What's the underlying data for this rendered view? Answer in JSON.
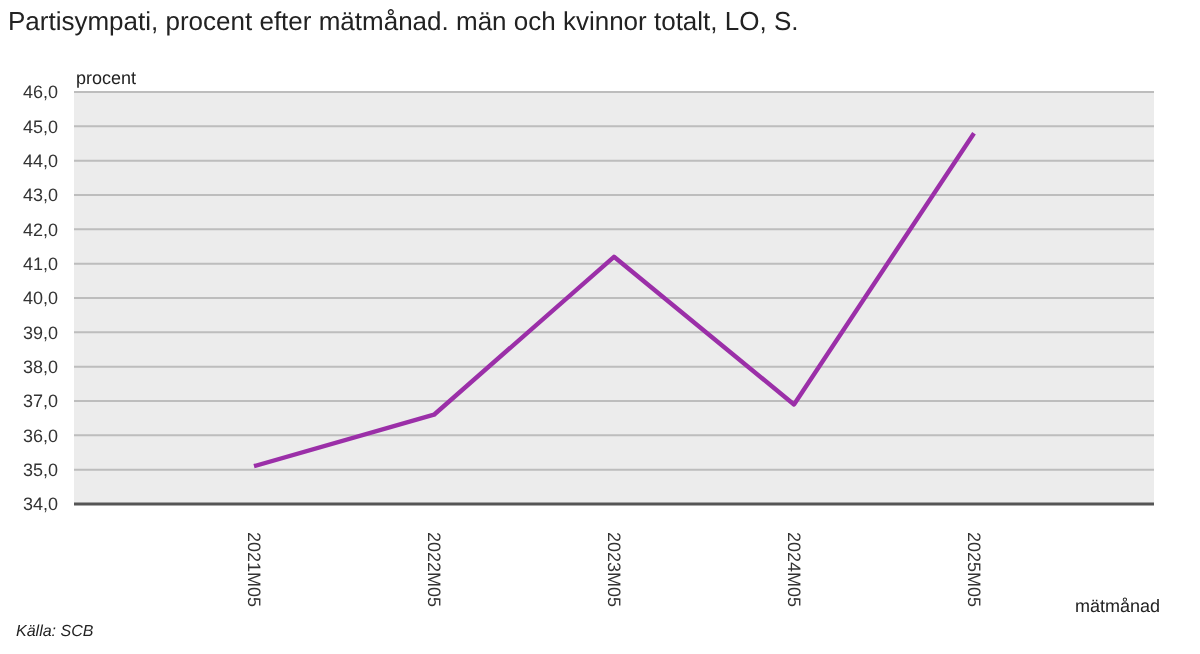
{
  "chart_data": {
    "type": "line",
    "title": "Partisympati, procent efter mätmånad. män och kvinnor totalt, LO, S.",
    "ylabel": "procent",
    "xlabel": "mätmånad",
    "annotations": [
      "Källa: SCB"
    ],
    "categories": [
      "2021M05",
      "2022M05",
      "2023M05",
      "2024M05",
      "2025M05"
    ],
    "series": [
      {
        "color": "#9b2fa8",
        "values": [
          35.1,
          36.6,
          41.2,
          36.9,
          44.8
        ]
      }
    ],
    "ylim": [
      34,
      46
    ],
    "yticks": [
      {
        "value": 34,
        "label": "34,0"
      },
      {
        "value": 35,
        "label": "35,0"
      },
      {
        "value": 36,
        "label": "36,0"
      },
      {
        "value": 37,
        "label": "37,0"
      },
      {
        "value": 38,
        "label": "38,0"
      },
      {
        "value": 39,
        "label": "39,0"
      },
      {
        "value": 40,
        "label": "40,0"
      },
      {
        "value": 41,
        "label": "41,0"
      },
      {
        "value": 42,
        "label": "42,0"
      },
      {
        "value": 43,
        "label": "43,0"
      },
      {
        "value": 44,
        "label": "44,0"
      },
      {
        "value": 45,
        "label": "45,0"
      },
      {
        "value": 46,
        "label": "46,0"
      }
    ],
    "grid": "y",
    "marker": "none",
    "line_style": "solid"
  }
}
